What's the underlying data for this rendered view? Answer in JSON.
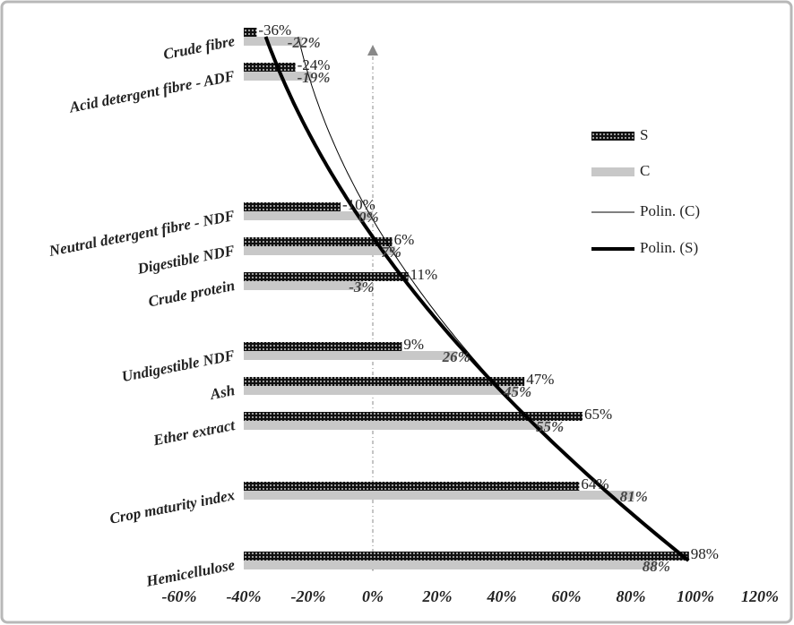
{
  "chart_data": {
    "type": "bar",
    "orientation": "horizontal",
    "categories": [
      "Crude fibre",
      "Acid detergent fibre - ADF",
      null,
      null,
      null,
      "Neutral detergent fibre - NDF",
      "Digestible NDF",
      "Crude protein",
      null,
      "Undigestible NDF",
      "Ash",
      "Ether extract",
      null,
      "Crop maturity index",
      null,
      "Hemicellulose"
    ],
    "series": [
      {
        "name": "S",
        "color": "#111111",
        "pattern": "dots",
        "values": [
          -36,
          -24,
          null,
          null,
          null,
          -10,
          6,
          11,
          null,
          9,
          47,
          65,
          null,
          64,
          null,
          98
        ],
        "value_labels": [
          "-36%",
          "-24%",
          null,
          null,
          null,
          "-10%",
          "6%",
          "11%",
          null,
          "9%",
          "47%",
          "65%",
          null,
          "64%",
          null,
          "98%"
        ]
      },
      {
        "name": "C",
        "color": "#c8c8c8",
        "values": [
          -22,
          -19,
          null,
          null,
          null,
          0,
          7,
          -3,
          null,
          26,
          45,
          55,
          null,
          81,
          null,
          88
        ],
        "value_labels": [
          "-22%",
          "-19%",
          null,
          null,
          null,
          "0%",
          "7%",
          "-3%",
          null,
          "26%",
          "45%",
          "55%",
          null,
          "81%",
          null,
          "88%"
        ]
      }
    ],
    "trendlines": [
      {
        "name": "Polin. (C)",
        "series": 1,
        "order": 2,
        "color": "#000000",
        "width": 1
      },
      {
        "name": "Polin. (S)",
        "series": 0,
        "order": 2,
        "color": "#000000",
        "width": 4
      }
    ],
    "xlim": [
      -60,
      120
    ],
    "value_axis_crosses": -40,
    "xticks": [
      {
        "value": -60,
        "label": "-60%"
      },
      {
        "value": -40,
        "label": "-40%"
      },
      {
        "value": -20,
        "label": "-20%"
      },
      {
        "value": 0,
        "label": "0%"
      },
      {
        "value": 20,
        "label": "20%"
      },
      {
        "value": 40,
        "label": "40%"
      },
      {
        "value": 60,
        "label": "60%"
      },
      {
        "value": 80,
        "label": "80%"
      },
      {
        "value": 100,
        "label": "100%"
      },
      {
        "value": 120,
        "label": "120%"
      }
    ],
    "legend": "right"
  }
}
